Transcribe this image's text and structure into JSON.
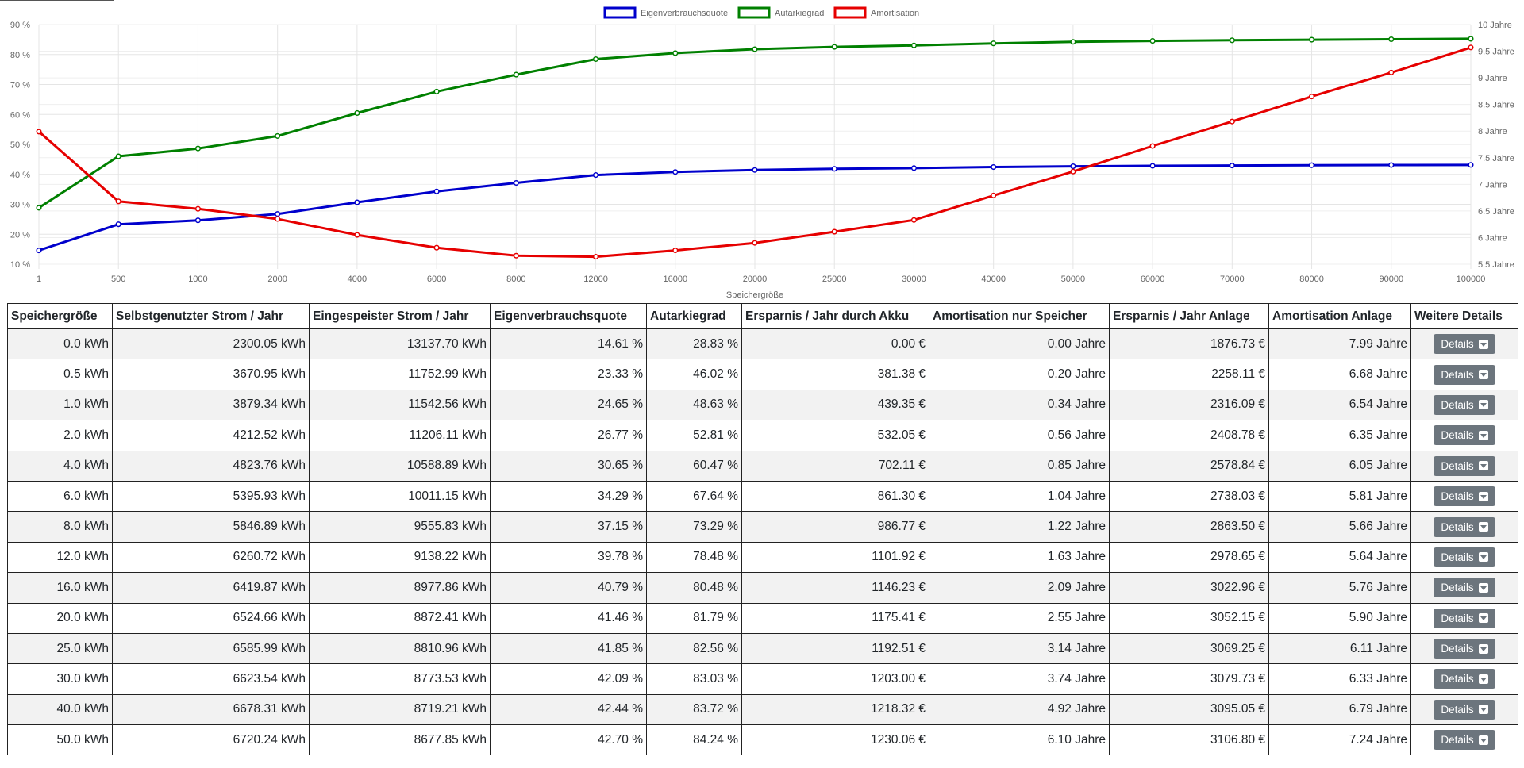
{
  "chart_data": {
    "type": "line",
    "categories": [
      "1",
      "500",
      "1000",
      "2000",
      "4000",
      "6000",
      "8000",
      "12000",
      "16000",
      "20000",
      "25000",
      "30000",
      "40000",
      "50000",
      "60000",
      "70000",
      "80000",
      "90000",
      "100000"
    ],
    "xlabel": "Speichergröße",
    "ylim_left": [
      10,
      90
    ],
    "yticks_left": [
      "90 %",
      "80 %",
      "70 %",
      "60 %",
      "50 %",
      "40 %",
      "30 %",
      "20 %",
      "10 %"
    ],
    "ylim_right": [
      5.5,
      10
    ],
    "yticks_right": [
      "10 Jahre",
      "9.5 Jahre",
      "9 Jahre",
      "8.5 Jahre",
      "8 Jahre",
      "7.5 Jahre",
      "7 Jahre",
      "6.5 Jahre",
      "6 Jahre",
      "5.5 Jahre"
    ],
    "legend_position": "top-center",
    "grid": true,
    "series": [
      {
        "name": "Eigenverbrauchsquote",
        "color": "#0000cc",
        "axis": "left",
        "values": [
          14.61,
          23.33,
          24.65,
          26.77,
          30.65,
          34.29,
          37.15,
          39.78,
          40.79,
          41.46,
          41.85,
          42.09,
          42.44,
          42.7,
          42.85,
          42.95,
          43.05,
          43.1,
          43.15
        ]
      },
      {
        "name": "Autarkiegrad",
        "color": "#008000",
        "axis": "left",
        "values": [
          28.83,
          46.02,
          48.63,
          52.81,
          60.47,
          67.64,
          73.29,
          78.48,
          80.48,
          81.79,
          82.56,
          83.03,
          83.72,
          84.24,
          84.55,
          84.75,
          84.95,
          85.1,
          85.25
        ]
      },
      {
        "name": "Amortisation",
        "color": "#e60000",
        "axis": "right",
        "values": [
          7.99,
          6.68,
          6.54,
          6.35,
          6.05,
          5.81,
          5.66,
          5.64,
          5.76,
          5.9,
          6.11,
          6.33,
          6.79,
          7.24,
          7.72,
          8.18,
          8.65,
          9.1,
          9.57
        ]
      }
    ]
  },
  "table": {
    "headers": [
      "Speichergröße",
      "Selbstgenutzter Strom / Jahr",
      "Eingespeister Strom / Jahr",
      "Eigenverbrauchsquote",
      "Autarkiegrad",
      "Ersparnis / Jahr durch Akku",
      "Amortisation nur Speicher",
      "Ersparnis / Jahr Anlage",
      "Amortisation Anlage",
      "Weitere Details"
    ],
    "button_label": "Details",
    "rows": [
      [
        "0.0 kWh",
        "2300.05 kWh",
        "13137.70 kWh",
        "14.61 %",
        "28.83 %",
        "0.00 €",
        "0.00 Jahre",
        "1876.73 €",
        "7.99 Jahre"
      ],
      [
        "0.5 kWh",
        "3670.95 kWh",
        "11752.99 kWh",
        "23.33 %",
        "46.02 %",
        "381.38 €",
        "0.20 Jahre",
        "2258.11 €",
        "6.68 Jahre"
      ],
      [
        "1.0 kWh",
        "3879.34 kWh",
        "11542.56 kWh",
        "24.65 %",
        "48.63 %",
        "439.35 €",
        "0.34 Jahre",
        "2316.09 €",
        "6.54 Jahre"
      ],
      [
        "2.0 kWh",
        "4212.52 kWh",
        "11206.11 kWh",
        "26.77 %",
        "52.81 %",
        "532.05 €",
        "0.56 Jahre",
        "2408.78 €",
        "6.35 Jahre"
      ],
      [
        "4.0 kWh",
        "4823.76 kWh",
        "10588.89 kWh",
        "30.65 %",
        "60.47 %",
        "702.11 €",
        "0.85 Jahre",
        "2578.84 €",
        "6.05 Jahre"
      ],
      [
        "6.0 kWh",
        "5395.93 kWh",
        "10011.15 kWh",
        "34.29 %",
        "67.64 %",
        "861.30 €",
        "1.04 Jahre",
        "2738.03 €",
        "5.81 Jahre"
      ],
      [
        "8.0 kWh",
        "5846.89 kWh",
        "9555.83 kWh",
        "37.15 %",
        "73.29 %",
        "986.77 €",
        "1.22 Jahre",
        "2863.50 €",
        "5.66 Jahre"
      ],
      [
        "12.0 kWh",
        "6260.72 kWh",
        "9138.22 kWh",
        "39.78 %",
        "78.48 %",
        "1101.92 €",
        "1.63 Jahre",
        "2978.65 €",
        "5.64 Jahre"
      ],
      [
        "16.0 kWh",
        "6419.87 kWh",
        "8977.86 kWh",
        "40.79 %",
        "80.48 %",
        "1146.23 €",
        "2.09 Jahre",
        "3022.96 €",
        "5.76 Jahre"
      ],
      [
        "20.0 kWh",
        "6524.66 kWh",
        "8872.41 kWh",
        "41.46 %",
        "81.79 %",
        "1175.41 €",
        "2.55 Jahre",
        "3052.15 €",
        "5.90 Jahre"
      ],
      [
        "25.0 kWh",
        "6585.99 kWh",
        "8810.96 kWh",
        "41.85 %",
        "82.56 %",
        "1192.51 €",
        "3.14 Jahre",
        "3069.25 €",
        "6.11 Jahre"
      ],
      [
        "30.0 kWh",
        "6623.54 kWh",
        "8773.53 kWh",
        "42.09 %",
        "83.03 %",
        "1203.00 €",
        "3.74 Jahre",
        "3079.73 €",
        "6.33 Jahre"
      ],
      [
        "40.0 kWh",
        "6678.31 kWh",
        "8719.21 kWh",
        "42.44 %",
        "83.72 %",
        "1218.32 €",
        "4.92 Jahre",
        "3095.05 €",
        "6.79 Jahre"
      ],
      [
        "50.0 kWh",
        "6720.24 kWh",
        "8677.85 kWh",
        "42.70 %",
        "84.24 %",
        "1230.06 €",
        "6.10 Jahre",
        "3106.80 €",
        "7.24 Jahre"
      ]
    ]
  }
}
